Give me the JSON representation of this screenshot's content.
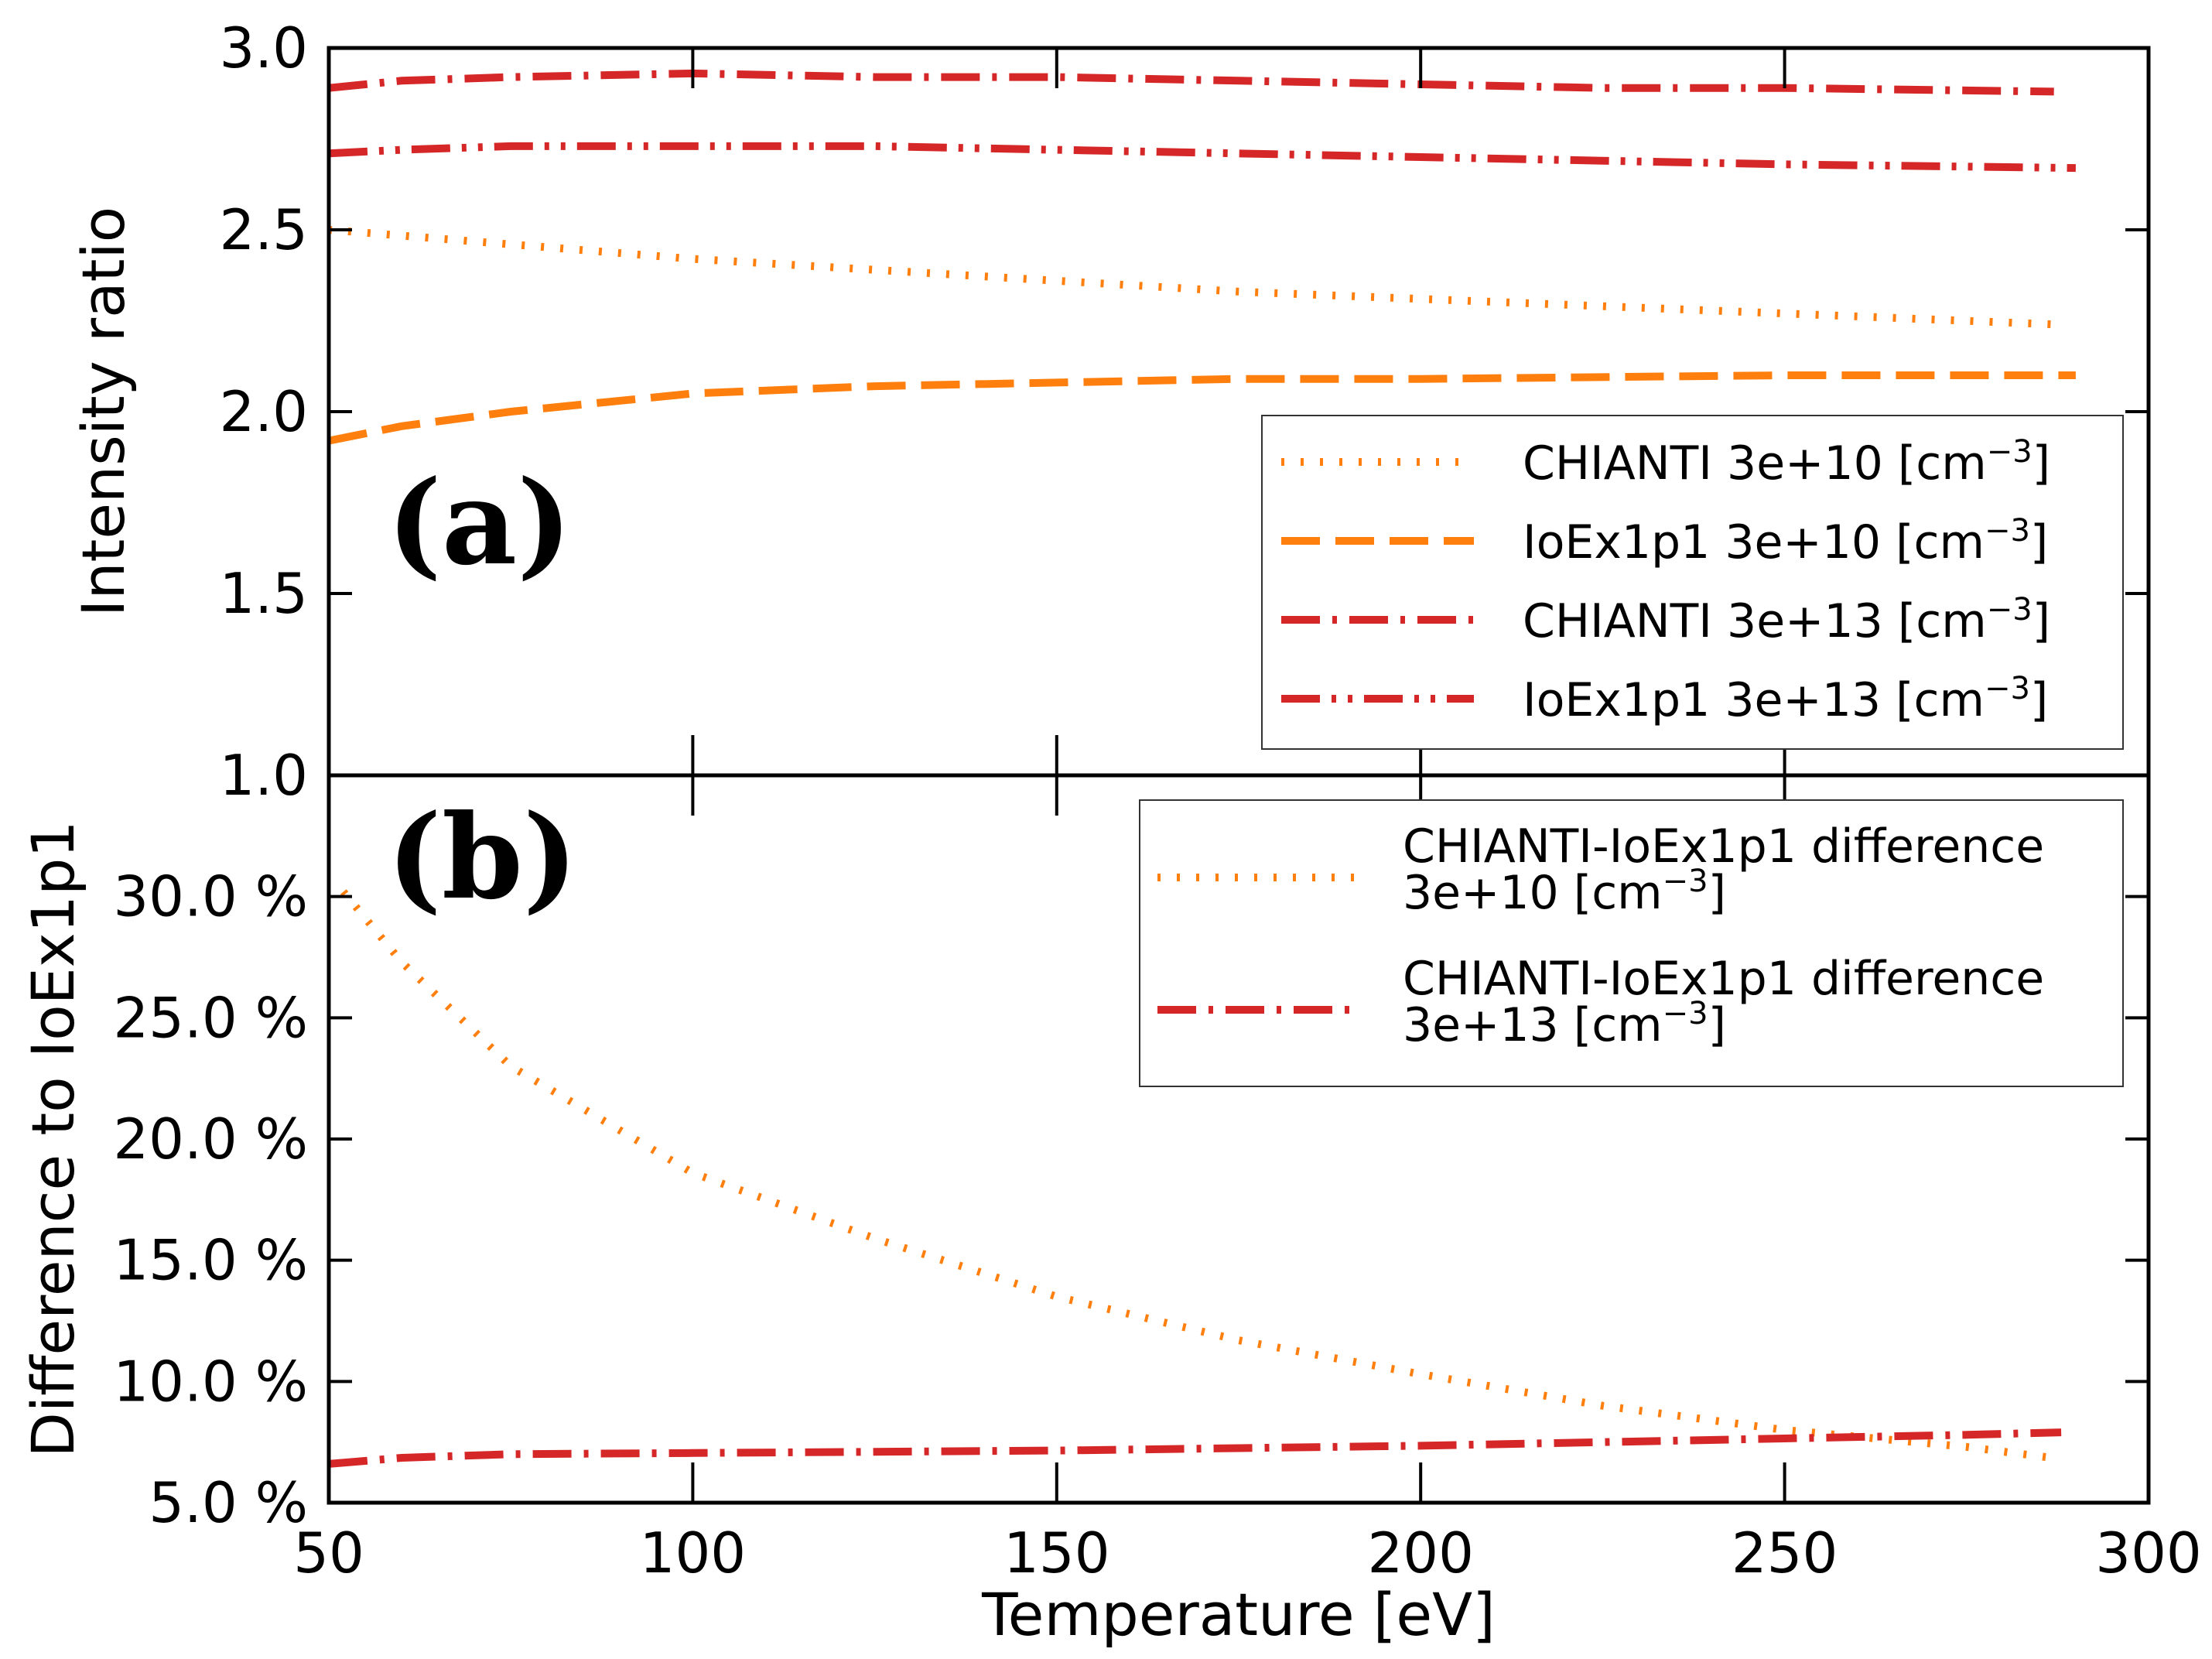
{
  "colors": {
    "orange": "#ff7f0e",
    "red": "#d62728",
    "axis": "#000000"
  },
  "xlabel": "Temperature [eV]",
  "x_ticks": [
    50,
    100,
    150,
    200,
    250,
    300
  ],
  "x_tick_labels": [
    "50",
    "100",
    "150",
    "200",
    "250",
    "300"
  ],
  "chart_data": [
    {
      "type": "line",
      "panel_label": "(a)",
      "ylabel": "Intensity ratio",
      "xlim": [
        50,
        300
      ],
      "ylim": [
        1.0,
        3.0
      ],
      "y_ticks": [
        1.0,
        1.5,
        2.0,
        2.5,
        3.0
      ],
      "y_tick_labels": [
        "1.0",
        "1.5",
        "2.0",
        "2.5",
        "3.0"
      ],
      "legend_position": "lower-right",
      "series": [
        {
          "name": "CHIANTI 3e+10 [cm⁻³]",
          "legend_main": "CHIANTI 3e+10 [cm",
          "legend_sup": "−3",
          "legend_end": "]",
          "style": "dotted",
          "color": "orange",
          "x": [
            50,
            75,
            100,
            125,
            150,
            175,
            200,
            225,
            250,
            287
          ],
          "y": [
            2.5,
            2.46,
            2.42,
            2.39,
            2.36,
            2.33,
            2.31,
            2.29,
            2.27,
            2.24
          ]
        },
        {
          "name": "IoEx1p1 3e+10 [cm⁻³]",
          "legend_main": "IoEx1p1 3e+10 [cm",
          "legend_sup": "−3",
          "legend_end": "]",
          "style": "dashed",
          "color": "orange",
          "x": [
            50,
            60,
            75,
            100,
            125,
            150,
            175,
            200,
            250,
            290
          ],
          "y": [
            1.92,
            1.96,
            2.0,
            2.05,
            2.07,
            2.08,
            2.09,
            2.09,
            2.1,
            2.1
          ]
        },
        {
          "name": "CHIANTI 3e+13 [cm⁻³]",
          "legend_main": "CHIANTI 3e+13 [cm",
          "legend_sup": "−3",
          "legend_end": "]",
          "style": "dashdot",
          "color": "red",
          "x": [
            50,
            60,
            75,
            100,
            125,
            150,
            175,
            200,
            225,
            250,
            287
          ],
          "y": [
            2.89,
            2.91,
            2.92,
            2.93,
            2.92,
            2.92,
            2.91,
            2.9,
            2.89,
            2.89,
            2.88
          ]
        },
        {
          "name": "IoEx1p1 3e+13 [cm⁻³]",
          "legend_main": "IoEx1p1 3e+13 [cm",
          "legend_sup": "−3",
          "legend_end": "]",
          "style": "dashdotdot",
          "color": "red",
          "x": [
            50,
            60,
            75,
            100,
            125,
            150,
            175,
            200,
            225,
            250,
            290
          ],
          "y": [
            2.71,
            2.72,
            2.73,
            2.73,
            2.73,
            2.72,
            2.71,
            2.7,
            2.69,
            2.68,
            2.67
          ]
        }
      ]
    },
    {
      "type": "line",
      "panel_label": "(b)",
      "ylabel": "Difference to IoEx1p1",
      "xlim": [
        50,
        300
      ],
      "ylim": [
        5.0,
        35.0
      ],
      "y_ticks": [
        5,
        10,
        15,
        20,
        25,
        30
      ],
      "y_tick_labels": [
        "5.0 %",
        "10.0 %",
        "15.0 %",
        "20.0 %",
        "25.0 %",
        "30.0 %"
      ],
      "legend_position": "upper-right",
      "series": [
        {
          "name": "CHIANTI-IoEx1p1 difference 3e+10 [cm⁻³]",
          "legend_line1": "CHIANTI-IoEx1p1 difference",
          "legend_main": " 3e+10 [cm",
          "legend_sup": "−3",
          "legend_end": "]",
          "style": "dotted",
          "color": "orange",
          "x": [
            52,
            60,
            75,
            100,
            125,
            150,
            175,
            200,
            225,
            250,
            275,
            288
          ],
          "y": [
            30.2,
            27.3,
            23.0,
            18.6,
            15.9,
            13.5,
            11.7,
            10.3,
            9.0,
            8.0,
            7.3,
            6.8
          ]
        },
        {
          "name": "CHIANTI-IoEx1p1 difference 3e+13 [cm⁻³]",
          "legend_line1": "CHIANTI-IoEx1p1 difference",
          "legend_main": " 3e+13 [cm",
          "legend_sup": "−3",
          "legend_end": "]",
          "style": "dashdot",
          "color": "red",
          "x": [
            50,
            60,
            75,
            100,
            125,
            150,
            175,
            200,
            225,
            250,
            275,
            288
          ],
          "y": [
            6.6,
            6.85,
            7.0,
            7.05,
            7.1,
            7.15,
            7.25,
            7.35,
            7.5,
            7.65,
            7.8,
            7.9
          ]
        }
      ]
    }
  ]
}
